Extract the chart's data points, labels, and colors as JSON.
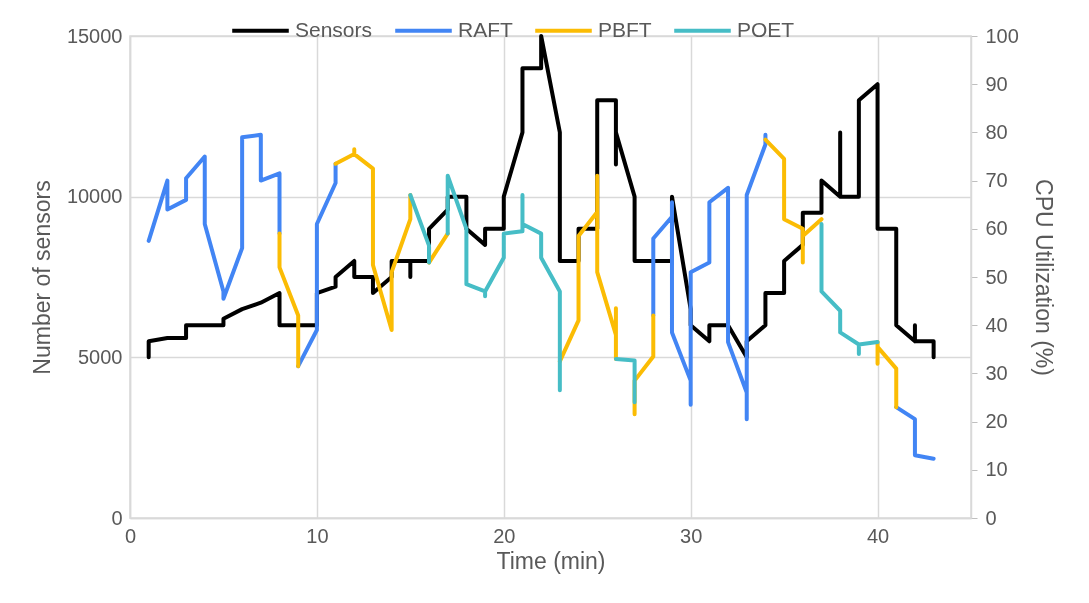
{
  "chart_data": {
    "type": "line",
    "xlabel": "Time (min)",
    "ylabel": "Number of sensors",
    "y2label": "CPU Utilization (%)",
    "xlim": [
      0,
      45
    ],
    "xticks": [
      0,
      10,
      20,
      30,
      40
    ],
    "ylim": [
      0,
      15000
    ],
    "yticks": [
      0,
      5000,
      10000,
      15000
    ],
    "y2lim": [
      0,
      100
    ],
    "y2ticks": [
      0,
      10,
      20,
      30,
      40,
      50,
      60,
      70,
      80,
      90,
      100
    ],
    "grid": true,
    "legend": "top",
    "line_style": "solid",
    "series": [
      {
        "name": "Sensors",
        "color": "#000000",
        "axis": "y",
        "x": [
          1,
          1,
          2,
          3,
          3,
          5,
          5,
          6,
          7,
          8,
          8,
          10,
          10,
          11,
          11,
          12,
          12,
          13,
          13,
          14,
          14,
          15,
          15,
          15,
          16,
          16,
          17,
          17,
          18,
          18,
          19,
          19,
          20,
          20,
          21,
          21,
          22,
          22,
          23,
          23,
          24,
          24,
          25,
          25,
          26,
          26,
          26,
          27,
          27,
          29,
          29,
          30,
          30,
          31,
          31,
          32,
          33,
          33,
          34,
          34,
          35,
          35,
          36,
          36,
          37,
          37,
          38,
          38,
          38,
          39,
          39,
          40,
          40,
          41,
          41,
          42,
          42,
          42,
          43,
          43
        ],
        "values": [
          5000,
          5500,
          5600,
          5600,
          6000,
          6000,
          6200,
          6500,
          6700,
          7000,
          6000,
          6000,
          7000,
          7200,
          7500,
          8000,
          7500,
          7500,
          7000,
          7500,
          8000,
          8000,
          7500,
          8000,
          8000,
          9000,
          9600,
          10000,
          10000,
          9000,
          8500,
          9000,
          9000,
          10000,
          12000,
          14000,
          14000,
          15000,
          12000,
          8000,
          8000,
          9000,
          9000,
          13000,
          13000,
          11000,
          12000,
          10000,
          8000,
          8000,
          10000,
          6500,
          6000,
          5500,
          6000,
          6000,
          5000,
          5500,
          6000,
          7000,
          7000,
          8000,
          8500,
          9500,
          9500,
          10500,
          10000,
          12000,
          10000,
          10000,
          13000,
          13500,
          9000,
          9000,
          6000,
          5500,
          6000,
          5500,
          5500,
          5000
        ]
      },
      {
        "name": "RAFT",
        "color": "#4285f4",
        "axis": "y2",
        "x": [
          1,
          2,
          2,
          3,
          3,
          4,
          4,
          5,
          5,
          6,
          6,
          7,
          7,
          8,
          8,
          null,
          9,
          10,
          10,
          11,
          11,
          null,
          28,
          28,
          29,
          29,
          29,
          30,
          30,
          30,
          31,
          31,
          32,
          32,
          33,
          33,
          33,
          34,
          34,
          null,
          41,
          42,
          42,
          43
        ],
        "values": [
          57.5,
          70,
          64,
          66,
          70.5,
          75,
          61,
          47,
          45.5,
          56,
          79,
          79.5,
          70,
          71.5,
          59,
          null,
          31.5,
          39,
          61,
          69.5,
          73.5,
          null,
          42,
          58,
          62.5,
          65.5,
          38.5,
          28.5,
          23.5,
          51,
          53,
          65.5,
          68.5,
          36.5,
          26,
          20.5,
          67,
          77.5,
          79.5,
          null,
          23,
          20.5,
          13,
          12.3
        ]
      },
      {
        "name": "PBFT",
        "color": "#fbbc04",
        "axis": "y2",
        "x": [
          8,
          8,
          9,
          9,
          null,
          11,
          12,
          12,
          12,
          13,
          13,
          14,
          14,
          15,
          15,
          null,
          16,
          17,
          null,
          23,
          24,
          24,
          25,
          25,
          25,
          26,
          26,
          26,
          null,
          27,
          27,
          27,
          28,
          28,
          null,
          34,
          35,
          35,
          36,
          36,
          36,
          37,
          null,
          40,
          40,
          40,
          41,
          41
        ],
        "values": [
          59,
          52,
          42,
          31.5,
          null,
          73.5,
          75.5,
          76.5,
          75.5,
          72.5,
          52.5,
          39,
          51,
          62,
          67,
          null,
          53,
          59,
          null,
          32.5,
          41,
          58.5,
          63.5,
          71,
          51,
          38,
          43.5,
          33,
          null,
          24,
          21.5,
          28.5,
          33.5,
          42,
          null,
          78.5,
          74.5,
          62,
          60,
          53,
          58.5,
          62,
          null,
          36.5,
          32,
          35.5,
          31,
          23
        ]
      },
      {
        "name": "POET",
        "color": "#46bdc6",
        "axis": "y2",
        "x": [
          15,
          16,
          16,
          null,
          17,
          17,
          18,
          18,
          19,
          19,
          19,
          20,
          20,
          21,
          21,
          21,
          22,
          22,
          23,
          23,
          23,
          null,
          26,
          27,
          27,
          null,
          37,
          37,
          38,
          38,
          39,
          39,
          39,
          40
        ],
        "values": [
          67,
          56.5,
          53,
          null,
          59,
          71,
          60,
          48.5,
          47,
          46,
          47,
          54,
          59,
          59.5,
          67,
          61,
          59,
          54,
          47,
          26.5,
          32.5,
          null,
          33,
          32.7,
          24,
          null,
          61,
          47,
          43,
          38.5,
          36,
          34,
          36,
          36.5
        ]
      }
    ]
  }
}
